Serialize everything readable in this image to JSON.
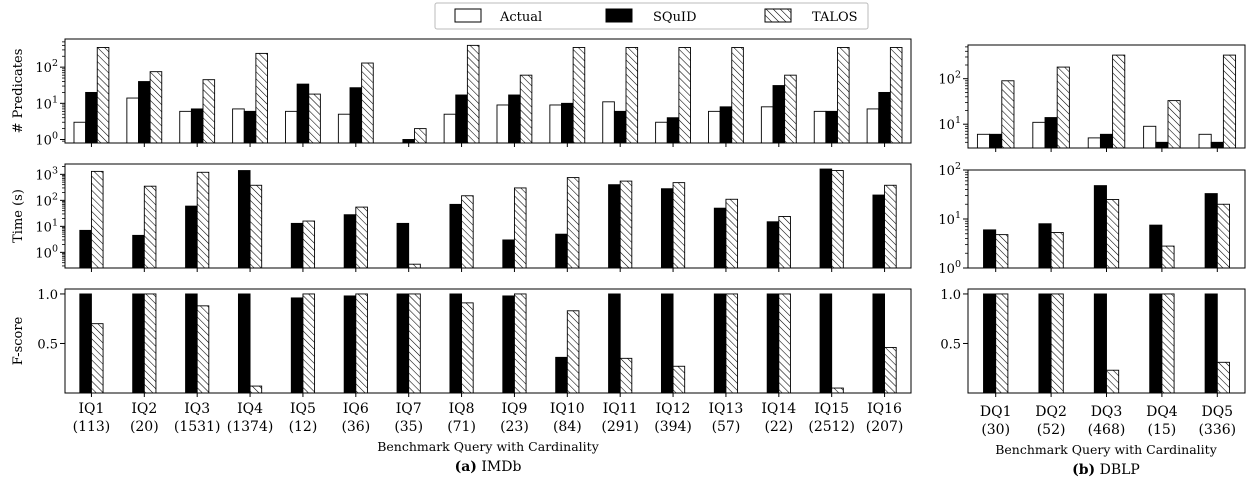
{
  "legend": {
    "entries": [
      {
        "name": "Actual",
        "fill": "white"
      },
      {
        "name": "SQuID",
        "fill": "black"
      },
      {
        "name": "TALOS",
        "fill": "hatch"
      }
    ]
  },
  "captions": {
    "imdb": {
      "label": "(a)",
      "name": "IMDb"
    },
    "dblp": {
      "label": "(b)",
      "name": "DBLP"
    }
  },
  "chart_data": [
    {
      "type": "bar",
      "title": "",
      "panel": "IMDb",
      "xlabel": "Benchmark Query with Cardinality",
      "categories": [
        "IQ1",
        "IQ2",
        "IQ3",
        "IQ4",
        "IQ5",
        "IQ6",
        "IQ7",
        "IQ8",
        "IQ9",
        "IQ10",
        "IQ11",
        "IQ12",
        "IQ13",
        "IQ14",
        "IQ15",
        "IQ16"
      ],
      "cardinalities": [
        "(113)",
        "(20)",
        "(1531)",
        "(1374)",
        "(12)",
        "(36)",
        "(35)",
        "(71)",
        "(23)",
        "(84)",
        "(291)",
        "(394)",
        "(57)",
        "(22)",
        "(2512)",
        "(207)"
      ],
      "subplots": [
        {
          "metric": "predicates",
          "ylabel": "# Predicates",
          "yscale": "log",
          "ylim": [
            0.8,
            600
          ],
          "yticks": [
            {
              "value": 1,
              "label": "10⁰"
            },
            {
              "value": 10,
              "label": "10¹"
            },
            {
              "value": 100,
              "label": "10²"
            }
          ],
          "series": [
            {
              "name": "Actual",
              "values": [
                3,
                14,
                6,
                7,
                6,
                5,
                0,
                5,
                9,
                9,
                11,
                3,
                6,
                8,
                6,
                7
              ]
            },
            {
              "name": "SQuID",
              "values": [
                20,
                40,
                7,
                6,
                34,
                27,
                1,
                17,
                17,
                10,
                6,
                4,
                8,
                31,
                6,
                20
              ]
            },
            {
              "name": "TALOS",
              "values": [
                350,
                75,
                45,
                240,
                18,
                130,
                2,
                400,
                60,
                350,
                350,
                350,
                350,
                60,
                350,
                350
              ]
            }
          ]
        },
        {
          "metric": "time",
          "ylabel": "Time (s)",
          "yscale": "log",
          "ylim": [
            0.25,
            2500
          ],
          "yticks": [
            {
              "value": 1,
              "label": "10⁰"
            },
            {
              "value": 10,
              "label": "10¹"
            },
            {
              "value": 100,
              "label": "10²"
            },
            {
              "value": 1000,
              "label": "10³"
            }
          ],
          "series": [
            {
              "name": "SQuID",
              "values": [
                7,
                4.5,
                60,
                1400,
                13,
                28,
                13,
                70,
                3,
                5,
                400,
                280,
                50,
                15,
                1600,
                160
              ]
            },
            {
              "name": "TALOS",
              "values": [
                1300,
                350,
                1200,
                380,
                16,
                55,
                0.35,
                150,
                300,
                750,
                550,
                480,
                110,
                24,
                1400,
                380
              ]
            }
          ]
        },
        {
          "metric": "fscore",
          "ylabel": "F-score",
          "yscale": "linear",
          "ylim": [
            0,
            1.05
          ],
          "yticks": [
            {
              "value": 0.5,
              "label": "0.5"
            },
            {
              "value": 1.0,
              "label": "1.0"
            }
          ],
          "series": [
            {
              "name": "SQuID",
              "values": [
                1.0,
                1.0,
                1.0,
                1.0,
                0.96,
                0.98,
                1.0,
                1.0,
                0.98,
                0.36,
                1.0,
                1.0,
                1.0,
                1.0,
                1.0,
                1.0
              ]
            },
            {
              "name": "TALOS",
              "values": [
                0.7,
                1.0,
                0.88,
                0.07,
                1.0,
                1.0,
                1.0,
                0.91,
                1.0,
                0.83,
                0.35,
                0.27,
                1.0,
                1.0,
                0.05,
                0.46
              ]
            }
          ]
        }
      ]
    },
    {
      "type": "bar",
      "title": "",
      "panel": "DBLP",
      "xlabel": "Benchmark Query with Cardinality",
      "categories": [
        "DQ1",
        "DQ2",
        "DQ3",
        "DQ4",
        "DQ5"
      ],
      "cardinalities": [
        "(30)",
        "(52)",
        "(468)",
        "(15)",
        "(336)"
      ],
      "subplots": [
        {
          "metric": "predicates",
          "ylabel": "",
          "yscale": "log",
          "ylim": [
            3,
            550
          ],
          "yticks": [
            {
              "value": 10,
              "label": "10¹"
            },
            {
              "value": 100,
              "label": "10²"
            }
          ],
          "series": [
            {
              "name": "Actual",
              "values": [
                6,
                11,
                5,
                9,
                6
              ]
            },
            {
              "name": "SQuID",
              "values": [
                6,
                14,
                6,
                4,
                4
              ]
            },
            {
              "name": "TALOS",
              "values": [
                90,
                180,
                330,
                33,
                330
              ]
            }
          ]
        },
        {
          "metric": "time",
          "ylabel": "",
          "yscale": "log",
          "ylim": [
            1,
            100
          ],
          "yticks": [
            {
              "value": 1,
              "label": "10⁰"
            },
            {
              "value": 10,
              "label": "10¹"
            },
            {
              "value": 100,
              "label": "10²"
            }
          ],
          "series": [
            {
              "name": "SQuID",
              "values": [
                6,
                8,
                48,
                7.5,
                33
              ]
            },
            {
              "name": "TALOS",
              "values": [
                4.8,
                5.3,
                25,
                2.8,
                20
              ]
            }
          ]
        },
        {
          "metric": "fscore",
          "ylabel": "",
          "yscale": "linear",
          "ylim": [
            0,
            1.05
          ],
          "yticks": [
            {
              "value": 0.5,
              "label": "0.5"
            },
            {
              "value": 1.0,
              "label": "1.0"
            }
          ],
          "series": [
            {
              "name": "SQuID",
              "values": [
                1.0,
                1.0,
                1.0,
                1.0,
                1.0
              ]
            },
            {
              "name": "TALOS",
              "values": [
                1.0,
                1.0,
                0.23,
                1.0,
                0.31
              ]
            }
          ]
        }
      ]
    }
  ]
}
